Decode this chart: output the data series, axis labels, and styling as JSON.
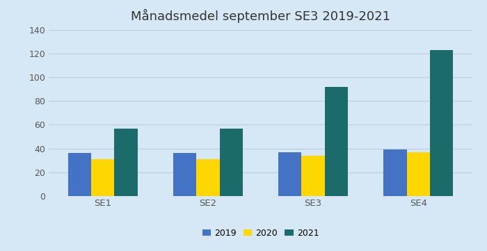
{
  "title": "Månadsmedel september SE3 2019-2021",
  "categories": [
    "SE1",
    "SE2",
    "SE3",
    "SE4"
  ],
  "series": {
    "2019": [
      36,
      36,
      37,
      39
    ],
    "2020": [
      31,
      31,
      34,
      37
    ],
    "2021": [
      57,
      57,
      92,
      123
    ]
  },
  "colors": {
    "2019": "#4472C4",
    "2020": "#FFD700",
    "2021": "#1B6B6B"
  },
  "ylim": [
    0,
    140
  ],
  "yticks": [
    0,
    20,
    40,
    60,
    80,
    100,
    120,
    140
  ],
  "background_color": "#D6E8F5",
  "plot_bg_color": "#D6E8F5",
  "title_fontsize": 13,
  "bar_width": 0.22,
  "legend_labels": [
    "2019",
    "2020",
    "2021"
  ],
  "grid_color": "#BFCDD8"
}
